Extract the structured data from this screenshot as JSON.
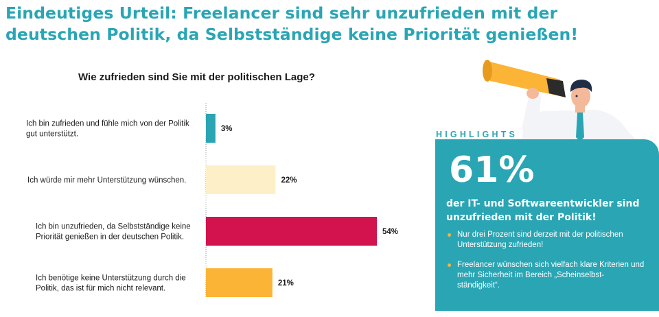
{
  "headline": {
    "line1": "Eindeutiges Urteil: Freelancer sind sehr unzufrieden mit der",
    "line2": "deutschen Politik, da Selbstständige keine Priorität genießen!"
  },
  "colors": {
    "accent": "#2aa5b4",
    "bar1": "#2aa5b4",
    "bar2": "#fdf0c8",
    "bar3": "#d2134e",
    "bar4": "#fbb436",
    "bullet": "#f6b53b"
  },
  "chart_data": {
    "type": "bar",
    "orientation": "horizontal",
    "title": "Wie zufrieden sind Sie mit der politischen Lage?",
    "categories": [
      [
        "Ich bin zufrieden und fühle mich von der Politik",
        "gut unterstützt."
      ],
      [
        "Ich würde mir mehr Unterstützung wünschen."
      ],
      [
        "Ich bin unzufrieden, da Selbstständige keine",
        "Priorität genießen in der deutschen Politik."
      ],
      [
        "Ich benötige keine Unterstützung durch die",
        "Politik, das ist für mich nicht relevant."
      ]
    ],
    "values": [
      3,
      22,
      54,
      21
    ],
    "value_labels": [
      "3%",
      "22%",
      "54%",
      "21%"
    ],
    "unit": "%",
    "xlim": [
      0,
      54
    ],
    "grid": false,
    "legend": "none"
  },
  "highlights": {
    "label": "HIGHLIGHTS",
    "big_number": "61%",
    "subtitle": "der IT- und Softwareentwickler sind unzufrieden mit der Politik!",
    "items": [
      "Nur drei Prozent sind derzeit mit der politischen Unterstützung zufrieden!",
      "Freelancer wünschen sich vielfach klare Kriterien und mehr Sicherheit im Bereich „Scheinselbst-ständigkeit“."
    ]
  },
  "illustration": {
    "icon": "businessman-with-telescope-icon"
  }
}
